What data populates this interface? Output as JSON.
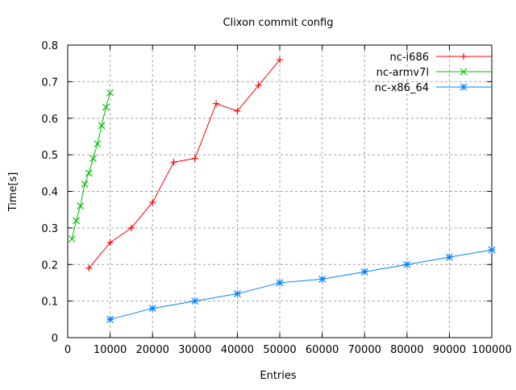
{
  "chart_data": {
    "type": "line",
    "title": "Clixon commit config",
    "xlabel": "Entries",
    "ylabel": "Time[s]",
    "xlim": [
      0,
      100000
    ],
    "ylim": [
      0,
      0.8
    ],
    "xticks": [
      0,
      10000,
      20000,
      30000,
      40000,
      50000,
      60000,
      70000,
      80000,
      90000,
      100000
    ],
    "yticks": [
      0,
      0.1,
      0.2,
      0.3,
      0.4,
      0.5,
      0.6,
      0.7,
      0.8
    ],
    "grid": true,
    "legend": "top-right",
    "series": [
      {
        "name": "nc-i686",
        "color": "#ff0000",
        "marker": "plus",
        "x": [
          5000,
          10000,
          15000,
          20000,
          25000,
          30000,
          35000,
          40000,
          45000,
          50000
        ],
        "y": [
          0.19,
          0.26,
          0.3,
          0.37,
          0.48,
          0.49,
          0.64,
          0.62,
          0.69,
          0.76
        ]
      },
      {
        "name": "nc-armv7l",
        "color": "#00c000",
        "marker": "cross",
        "x": [
          1000,
          2000,
          3000,
          4000,
          5000,
          6000,
          7000,
          8000,
          9000,
          10000
        ],
        "y": [
          0.27,
          0.32,
          0.36,
          0.42,
          0.45,
          0.49,
          0.53,
          0.58,
          0.63,
          0.67
        ]
      },
      {
        "name": "nc-x86_64",
        "color": "#0080ff",
        "marker": "star",
        "x": [
          10000,
          20000,
          30000,
          40000,
          50000,
          60000,
          70000,
          80000,
          90000,
          100000
        ],
        "y": [
          0.05,
          0.08,
          0.1,
          0.12,
          0.15,
          0.16,
          0.18,
          0.2,
          0.22,
          0.24
        ]
      }
    ]
  }
}
